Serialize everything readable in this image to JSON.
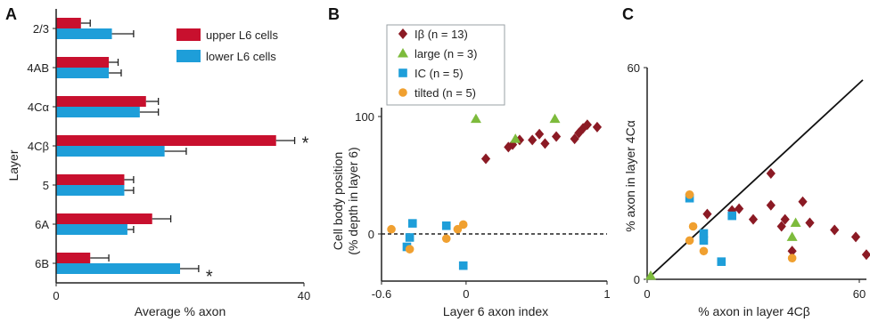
{
  "colors": {
    "upper": "#c8102e",
    "lower": "#1e9ed9",
    "Ibeta": "#8b1a24",
    "large": "#7dbb3c",
    "IC": "#1e9ed9",
    "tilted": "#f0a030",
    "axis": "#222222"
  },
  "chart_data": [
    {
      "panel": "A",
      "type": "bar",
      "orientation": "horizontal",
      "categories": [
        "2/3",
        "4AB",
        "4Cα",
        "4Cβ",
        "5",
        "6A",
        "6B"
      ],
      "series": [
        {
          "name": "upper L6 cells",
          "values": [
            4,
            8.5,
            14.5,
            35.5,
            11,
            15.5,
            5.5
          ],
          "errors": [
            1.5,
            1.5,
            2,
            3,
            1.5,
            3,
            3
          ]
        },
        {
          "name": "lower L6 cells",
          "values": [
            9,
            8.5,
            13.5,
            17.5,
            11,
            11.5,
            20
          ],
          "errors": [
            3.5,
            2,
            3,
            3.5,
            1.5,
            1,
            3
          ]
        }
      ],
      "significance": [
        "4Cβ",
        "6B"
      ],
      "xlabel": "Average % axon",
      "ylabel": "Layer",
      "xlim": [
        0,
        40
      ],
      "xticks": [
        "0",
        "40"
      ],
      "legend": "top-right"
    },
    {
      "panel": "B",
      "type": "scatter",
      "xlabel": "Layer 6 axon index",
      "ylabel_line1": "Cell body position",
      "ylabel_line2": "(% depth in layer 6)",
      "xlim": [
        -0.6,
        1
      ],
      "ylim": [
        -40,
        110
      ],
      "xticks": [
        "-0.6",
        "0",
        "1"
      ],
      "yticks": [
        "0",
        "100"
      ],
      "reference_line": "dashed at y = 0",
      "legend": "top-left",
      "series": [
        {
          "name": "Iβ (n = 13)",
          "marker": "diamond",
          "points": [
            [
              0.14,
              64
            ],
            [
              0.3,
              74
            ],
            [
              0.33,
              76
            ],
            [
              0.38,
              80
            ],
            [
              0.47,
              80
            ],
            [
              0.52,
              85
            ],
            [
              0.56,
              77
            ],
            [
              0.64,
              83
            ],
            [
              0.77,
              81
            ],
            [
              0.8,
              86
            ],
            [
              0.83,
              90
            ],
            [
              0.86,
              93
            ],
            [
              0.93,
              91
            ]
          ]
        },
        {
          "name": "large (n = 3)",
          "marker": "triangle",
          "points": [
            [
              0.07,
              98
            ],
            [
              0.35,
              81
            ],
            [
              0.63,
              98
            ]
          ]
        },
        {
          "name": "IC (n = 5)",
          "marker": "square",
          "points": [
            [
              -0.38,
              9
            ],
            [
              -0.4,
              -3
            ],
            [
              -0.42,
              -11
            ],
            [
              -0.14,
              7
            ],
            [
              -0.02,
              -27
            ]
          ]
        },
        {
          "name": "tilted (n = 5)",
          "marker": "circle",
          "points": [
            [
              -0.53,
              4
            ],
            [
              -0.4,
              -13
            ],
            [
              -0.14,
              -4
            ],
            [
              -0.06,
              4
            ],
            [
              -0.02,
              8
            ]
          ]
        }
      ]
    },
    {
      "panel": "C",
      "type": "scatter",
      "xlabel": "% axon in layer 4Cβ",
      "ylabel": "% axon in layer 4Cα",
      "xlim": [
        0,
        60
      ],
      "ylim": [
        0,
        60
      ],
      "xticks": [
        "0",
        "60"
      ],
      "yticks": [
        "0",
        "60"
      ],
      "reference_line": "diagonal y = x",
      "series": [
        {
          "name": "Iβ",
          "marker": "diamond",
          "points": [
            [
              17,
              18.5
            ],
            [
              24,
              19.5
            ],
            [
              26,
              20
            ],
            [
              30,
              17
            ],
            [
              35,
              21
            ],
            [
              35,
              30
            ],
            [
              38,
              15
            ],
            [
              39,
              17
            ],
            [
              41,
              8
            ],
            [
              46,
              16
            ],
            [
              44,
              22
            ],
            [
              53,
              14
            ],
            [
              59,
              12
            ],
            [
              62,
              7
            ]
          ]
        },
        {
          "name": "large",
          "marker": "triangle",
          "points": [
            [
              1,
              1
            ],
            [
              41,
              12
            ],
            [
              42,
              16
            ]
          ]
        },
        {
          "name": "IC",
          "marker": "square",
          "points": [
            [
              12,
              23
            ],
            [
              16,
              13
            ],
            [
              16,
              11
            ],
            [
              21,
              5
            ],
            [
              24,
              18
            ]
          ]
        },
        {
          "name": "tilted",
          "marker": "circle",
          "points": [
            [
              12,
              11
            ],
            [
              12,
              24
            ],
            [
              13,
              15
            ],
            [
              16,
              8
            ],
            [
              41,
              6
            ]
          ]
        }
      ]
    }
  ]
}
